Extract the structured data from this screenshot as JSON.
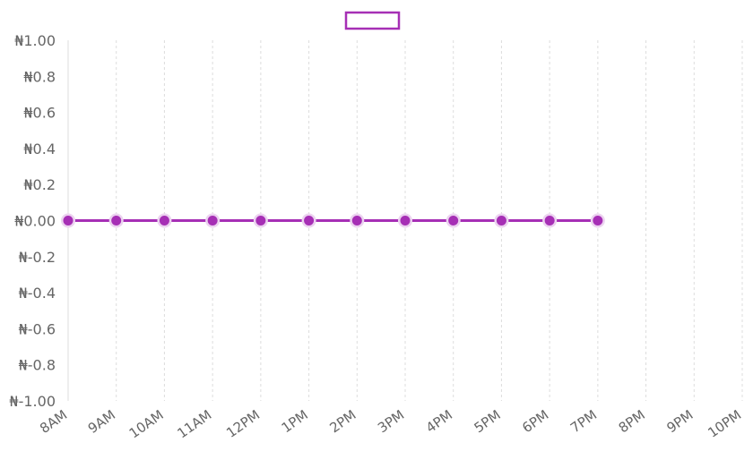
{
  "chart_data": {
    "type": "line",
    "title": "",
    "xlabel": "",
    "ylabel": "",
    "categories": [
      "8AM",
      "9AM",
      "10AM",
      "11AM",
      "12PM",
      "1PM",
      "2PM",
      "3PM",
      "4PM",
      "5PM",
      "6PM",
      "7PM",
      "8PM",
      "9PM",
      "10PM"
    ],
    "series": [
      {
        "values": [
          0,
          0,
          0,
          0,
          0,
          0,
          0,
          0,
          0,
          0,
          0,
          0,
          null,
          null,
          null
        ]
      }
    ],
    "ylim": [
      -1,
      1
    ],
    "yticks": [
      1,
      0.8,
      0.6,
      0.4,
      0.2,
      0,
      -0.2,
      -0.4,
      -0.6,
      -0.8,
      -1
    ],
    "ytick_labels": [
      "₦1.00",
      "₦0.8",
      "₦0.6",
      "₦0.4",
      "₦0.2",
      "₦0.00",
      "₦-0.2",
      "₦-0.4",
      "₦-0.6",
      "₦-0.8",
      "₦-1.00"
    ],
    "grid": {
      "vertical": true,
      "horizontal": false
    },
    "legend": {
      "position": "top-center"
    },
    "colors": {
      "series": "#a62fb5",
      "point_halo": "#ecd3f0",
      "grid": "#dddddd",
      "axis_text": "#666666"
    }
  }
}
